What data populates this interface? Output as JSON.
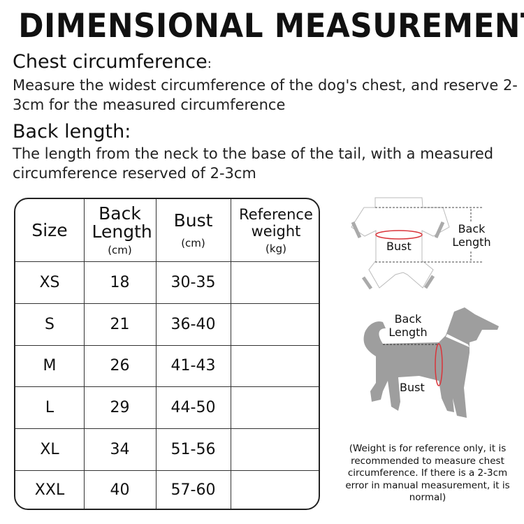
{
  "title": "DIMENSIONAL MEASUREMENT",
  "chest": {
    "heading": "Chest circumference",
    "colon": ":",
    "text": "Measure the widest circumference of the dog's chest, and reserve 2-3cm for the measured circumference"
  },
  "back": {
    "heading": "Back length:",
    "text": "The length from the neck to the base of the tail, with a measured circumference reserved of 2-3cm"
  },
  "table": {
    "headers": [
      {
        "label": "Size",
        "unit": ""
      },
      {
        "label": "Back Length",
        "unit": "(cm)"
      },
      {
        "label": "Bust",
        "unit": "(cm)"
      },
      {
        "label": "Reference weight",
        "unit": "(kg)"
      }
    ],
    "rows": [
      {
        "size": "XS",
        "back": "18",
        "bust": "30-35",
        "weight": ""
      },
      {
        "size": "S",
        "back": "21",
        "bust": "36-40",
        "weight": ""
      },
      {
        "size": "M",
        "back": "26",
        "bust": "41-43",
        "weight": ""
      },
      {
        "size": "L",
        "back": "29",
        "bust": "44-50",
        "weight": ""
      },
      {
        "size": "XL",
        "back": "34",
        "bust": "51-56",
        "weight": ""
      },
      {
        "size": "XXL",
        "back": "40",
        "bust": "57-60",
        "weight": ""
      }
    ]
  },
  "diagram": {
    "garment_bust": "Bust",
    "garment_back_length": "Back Length",
    "dog_back_length": "Back Length",
    "dog_bust": "Bust",
    "colors": {
      "silhouette": "#9e9e9e",
      "measure": "#d9343a"
    }
  },
  "note": "(Weight is for reference only, it is recommended to measure chest circumference. If there is a 2-3cm error in manual measurement, it is normal)"
}
